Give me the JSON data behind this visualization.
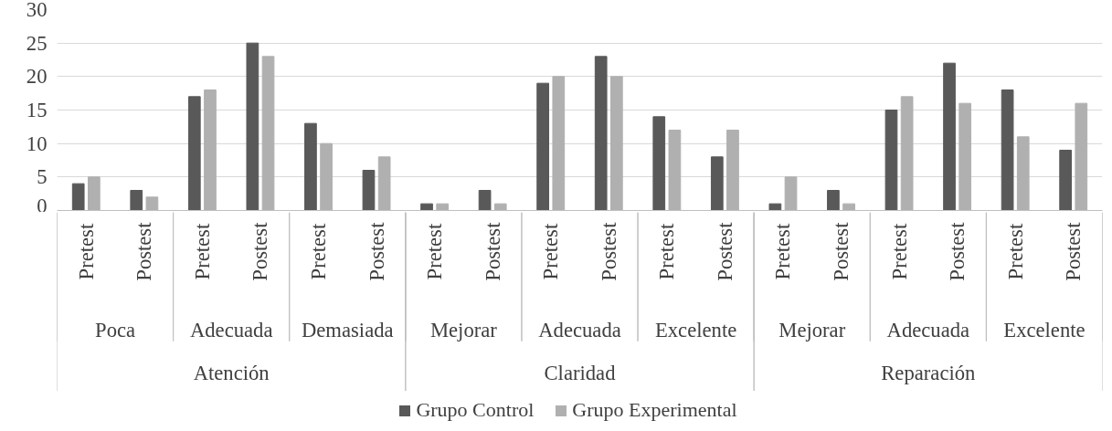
{
  "chart_data": {
    "type": "bar",
    "categories": [
      "Pretest",
      "Postest",
      "Pretest",
      "Postest",
      "Pretest",
      "Postest",
      "Pretest",
      "Postest",
      "Pretest",
      "Postest",
      "Pretest",
      "Postest",
      "Pretest",
      "Postest",
      "Pretest",
      "Postest",
      "Pretest",
      "Postest"
    ],
    "annotations": [
      "Poca",
      "Adecuada",
      "Demasiada",
      "Mejorar",
      "Adecuada",
      "Excelente",
      "Mejorar",
      "Adecuada",
      "Excelente",
      "Atención",
      "Claridad",
      "Reparación"
    ],
    "series": [
      {
        "name": "Grupo Control",
        "color": "#595959",
        "values": [
          4,
          3,
          17,
          25,
          13,
          6,
          1,
          3,
          19,
          23,
          14,
          8,
          1,
          3,
          15,
          22,
          18,
          9
        ]
      },
      {
        "name": "Grupo Experimental",
        "color": "#b0b0b0",
        "values": [
          5,
          2,
          18,
          23,
          10,
          8,
          1,
          1,
          20,
          20,
          12,
          12,
          5,
          1,
          17,
          16,
          11,
          16
        ]
      }
    ],
    "ylim": [
      0,
      30
    ],
    "yticks": [
      0,
      5,
      10,
      15,
      20,
      25,
      30
    ],
    "grid": "y",
    "legend": "bottom"
  }
}
